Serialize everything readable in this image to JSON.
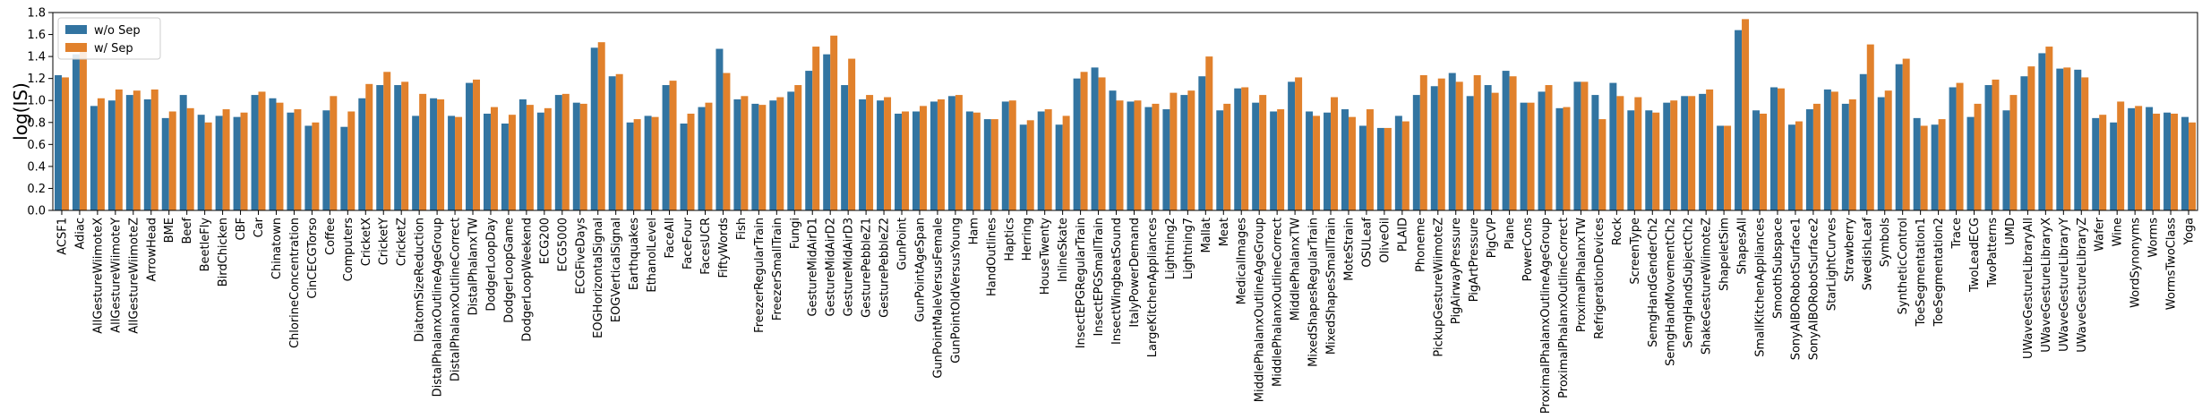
{
  "chart_data": {
    "type": "bar",
    "ylabel": "log(IS)",
    "ylim": [
      0,
      1.8
    ],
    "yticks": [
      0.0,
      0.2,
      0.4,
      0.6,
      0.8,
      1.0,
      1.2,
      1.4,
      1.6,
      1.8
    ],
    "legend_position": "top-left",
    "categories": [
      "ACSF1",
      "Adiac",
      "AllGestureWiimoteX",
      "AllGestureWiimoteY",
      "AllGestureWiimoteZ",
      "ArrowHead",
      "BME",
      "Beef",
      "BeetleFly",
      "BirdChicken",
      "CBF",
      "Car",
      "Chinatown",
      "ChlorineConcentration",
      "CinCECGTorso",
      "Coffee",
      "Computers",
      "CricketX",
      "CricketY",
      "CricketZ",
      "DiatomSizeReduction",
      "DistalPhalanxOutlineAgeGroup",
      "DistalPhalanxOutlineCorrect",
      "DistalPhalanxTW",
      "DodgerLoopDay",
      "DodgerLoopGame",
      "DodgerLoopWeekend",
      "ECG200",
      "ECG5000",
      "ECGFiveDays",
      "EOGHorizontalSignal",
      "EOGVerticalSignal",
      "Earthquakes",
      "EthanolLevel",
      "FaceAll",
      "FaceFour",
      "FacesUCR",
      "FiftyWords",
      "Fish",
      "FreezerRegularTrain",
      "FreezerSmallTrain",
      "Fungi",
      "GestureMidAirD1",
      "GestureMidAirD2",
      "GestureMidAirD3",
      "GesturePebbleZ1",
      "GesturePebbleZ2",
      "GunPoint",
      "GunPointAgeSpan",
      "GunPointMaleVersusFemale",
      "GunPointOldVersusYoung",
      "Ham",
      "HandOutlines",
      "Haptics",
      "Herring",
      "HouseTwenty",
      "InlineSkate",
      "InsectEPGRegularTrain",
      "InsectEPGSmallTrain",
      "InsectWingbeatSound",
      "ItalyPowerDemand",
      "LargeKitchenAppliances",
      "Lightning2",
      "Lightning7",
      "Mallat",
      "Meat",
      "MedicalImages",
      "MiddlePhalanxOutlineAgeGroup",
      "MiddlePhalanxOutlineCorrect",
      "MiddlePhalanxTW",
      "MixedShapesRegularTrain",
      "MixedShapesSmallTrain",
      "MoteStrain",
      "OSULeaf",
      "OliveOil",
      "PLAID",
      "Phoneme",
      "PickupGestureWiimoteZ",
      "PigAirwayPressure",
      "PigArtPressure",
      "PigCVP",
      "Plane",
      "PowerCons",
      "ProximalPhalanxOutlineAgeGroup",
      "ProximalPhalanxOutlineCorrect",
      "ProximalPhalanxTW",
      "RefrigerationDevices",
      "Rock",
      "ScreenType",
      "SemgHandGenderCh2",
      "SemgHandMovementCh2",
      "SemgHandSubjectCh2",
      "ShakeGestureWiimoteZ",
      "ShapeletSim",
      "ShapesAll",
      "SmallKitchenAppliances",
      "SmoothSubspace",
      "SonyAIBORobotSurface1",
      "SonyAIBORobotSurface2",
      "StarLightCurves",
      "Strawberry",
      "SwedishLeaf",
      "Symbols",
      "SyntheticControl",
      "ToeSegmentation1",
      "ToeSegmentation2",
      "Trace",
      "TwoLeadECG",
      "TwoPatterns",
      "UMD",
      "UWaveGestureLibraryAll",
      "UWaveGestureLibraryX",
      "UWaveGestureLibraryY",
      "UWaveGestureLibraryZ",
      "Wafer",
      "Wine",
      "WordSynonyms",
      "Worms",
      "WormsTwoClass",
      "Yoga"
    ],
    "series": [
      {
        "name": "w/o Sep",
        "color": "#3274a1",
        "values": [
          1.23,
          1.42,
          0.95,
          1.0,
          1.05,
          1.01,
          0.84,
          1.05,
          0.87,
          0.86,
          0.85,
          1.05,
          1.02,
          0.89,
          0.77,
          0.91,
          0.76,
          1.02,
          1.14,
          1.14,
          0.86,
          1.02,
          0.86,
          1.16,
          0.88,
          0.79,
          1.01,
          0.89,
          1.05,
          0.98,
          1.48,
          1.22,
          0.8,
          0.86,
          1.14,
          0.79,
          0.94,
          1.47,
          1.01,
          0.97,
          1.0,
          1.08,
          1.27,
          1.42,
          1.14,
          1.01,
          1.0,
          0.88,
          0.9,
          0.99,
          1.04,
          0.9,
          0.83,
          0.99,
          0.78,
          0.9,
          0.78,
          1.2,
          1.3,
          1.09,
          0.99,
          0.94,
          0.92,
          1.05,
          1.22,
          0.91,
          1.11,
          0.98,
          0.9,
          1.17,
          0.9,
          0.89,
          0.92,
          0.77,
          0.75,
          0.86,
          1.05,
          1.13,
          1.25,
          1.04,
          1.14,
          1.27,
          0.98,
          1.08,
          0.93,
          1.17,
          1.05,
          1.16,
          0.91,
          0.91,
          0.98,
          1.04,
          1.06,
          0.77,
          1.64,
          0.91,
          1.12,
          0.78,
          0.92,
          1.1,
          0.97,
          1.24,
          1.03,
          1.33,
          0.84,
          0.78,
          1.12,
          0.85,
          1.14,
          0.91,
          1.22,
          1.43,
          1.29,
          1.28,
          0.84,
          0.8,
          0.93,
          0.94,
          0.89,
          0.85
        ]
      },
      {
        "name": "w/ Sep",
        "color": "#e1812c",
        "values": [
          1.21,
          1.5,
          1.02,
          1.1,
          1.09,
          1.1,
          0.9,
          0.93,
          0.8,
          0.92,
          0.89,
          1.08,
          0.98,
          0.92,
          0.8,
          1.04,
          0.9,
          1.15,
          1.26,
          1.17,
          1.06,
          1.01,
          0.85,
          1.19,
          0.94,
          0.87,
          0.96,
          0.93,
          1.06,
          0.97,
          1.53,
          1.24,
          0.83,
          0.85,
          1.18,
          0.88,
          0.98,
          1.25,
          1.04,
          0.96,
          1.03,
          1.14,
          1.49,
          1.59,
          1.38,
          1.05,
          1.03,
          0.9,
          0.95,
          1.01,
          1.05,
          0.89,
          0.83,
          1.0,
          0.82,
          0.92,
          0.86,
          1.26,
          1.21,
          1.0,
          1.0,
          0.97,
          1.07,
          1.09,
          1.4,
          0.97,
          1.12,
          1.05,
          0.92,
          1.21,
          0.86,
          1.03,
          0.85,
          0.92,
          0.75,
          0.81,
          1.23,
          1.2,
          1.17,
          1.23,
          1.07,
          1.22,
          0.98,
          1.14,
          0.94,
          1.17,
          0.83,
          1.04,
          1.03,
          0.89,
          1.0,
          1.04,
          1.1,
          0.77,
          1.74,
          0.88,
          1.11,
          0.81,
          0.97,
          1.08,
          1.01,
          1.51,
          1.09,
          1.38,
          0.77,
          0.83,
          1.16,
          0.97,
          1.19,
          1.05,
          1.31,
          1.49,
          1.3,
          1.21,
          0.87,
          0.99,
          0.95,
          0.88,
          0.88,
          0.8
        ]
      }
    ]
  }
}
